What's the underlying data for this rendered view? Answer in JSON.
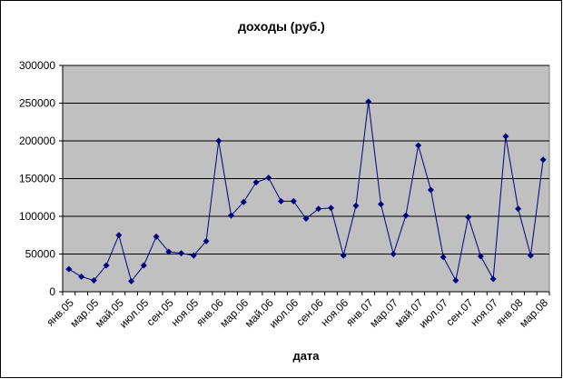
{
  "chart_data": {
    "type": "line",
    "title": "доходы (руб.)",
    "x_label": "дата",
    "categories": [
      "янв.05",
      null,
      "мар.05",
      null,
      "май.05",
      null,
      "июл.05",
      null,
      "сен.05",
      null,
      "ноя.05",
      null,
      "янв.06",
      null,
      "мар.06",
      null,
      "май.06",
      null,
      "июл.06",
      null,
      "сен.06",
      null,
      "ноя.06",
      null,
      "янв.07",
      null,
      "мар.07",
      null,
      "май.07",
      null,
      "июл.07",
      null,
      "сен.07",
      null,
      "ноя.07",
      null,
      "янв.08",
      null,
      "мар.08"
    ],
    "series": [
      {
        "name": "доходы",
        "color": "#000080",
        "values": [
          30000,
          20000,
          15000,
          35000,
          75000,
          14000,
          35000,
          73000,
          53000,
          51000,
          48000,
          67000,
          200000,
          101000,
          119000,
          145000,
          151000,
          120000,
          120000,
          97000,
          110000,
          111000,
          48000,
          114000,
          252000,
          116000,
          50000,
          101000,
          194000,
          135000,
          46000,
          15000,
          99000,
          47000,
          17000,
          206000,
          110000,
          48000,
          175000
        ]
      }
    ],
    "ylim": [
      0,
      300000
    ],
    "yticks": [
      0,
      50000,
      100000,
      150000,
      200000,
      250000,
      300000
    ],
    "grid": true,
    "plot_color": "#c0c0c0"
  }
}
